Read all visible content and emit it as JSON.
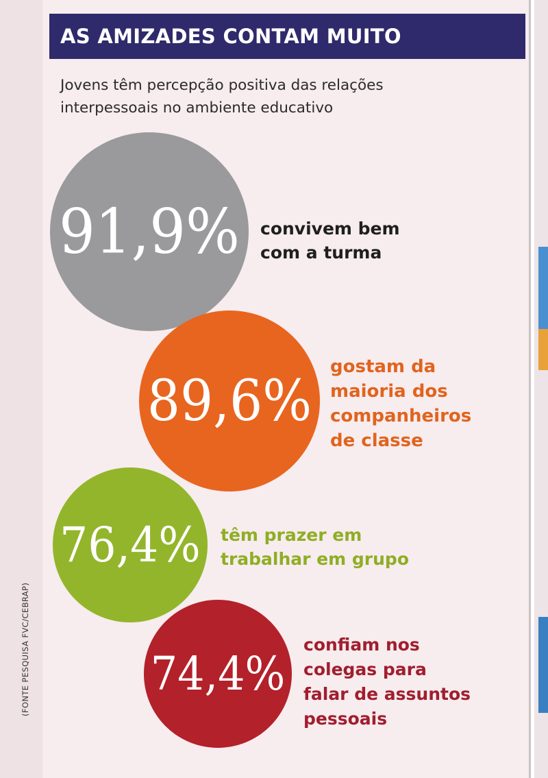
{
  "header": {
    "title": "AS AMIZADES CONTAM MUITO",
    "subtitle": "Jovens têm percepção positiva das relações interpessoais no ambiente educativo"
  },
  "source": "(FONTE PESQUISA FVC/CEBRAP)",
  "colors": {
    "title_bar": "#2f2a6b",
    "gray": "#9a999b",
    "orange": "#e8651f",
    "green": "#93b52b",
    "red": "#b3212a"
  },
  "chart_data": {
    "type": "bubble",
    "unit": "%",
    "items": [
      {
        "value": 91.9,
        "value_label": "91,9%",
        "description": [
          "convivem bem",
          "com a turma"
        ],
        "color": "#9a999b",
        "description_color": "#1f1f1f"
      },
      {
        "value": 89.6,
        "value_label": "89,6%",
        "description": [
          "gostam da",
          "maioria dos",
          "companheiros",
          "de classe"
        ],
        "color": "#e8651f",
        "description_color": "#e0641e"
      },
      {
        "value": 76.4,
        "value_label": "76,4%",
        "description": [
          "têm prazer em",
          "trabalhar em grupo"
        ],
        "color": "#93b52b",
        "description_color": "#8fae24"
      },
      {
        "value": 74.4,
        "value_label": "74,4%",
        "description": [
          "confiam nos",
          "colegas para",
          "falar de assuntos",
          "pessoais"
        ],
        "color": "#b3212a",
        "description_color": "#a01e2e"
      }
    ]
  }
}
